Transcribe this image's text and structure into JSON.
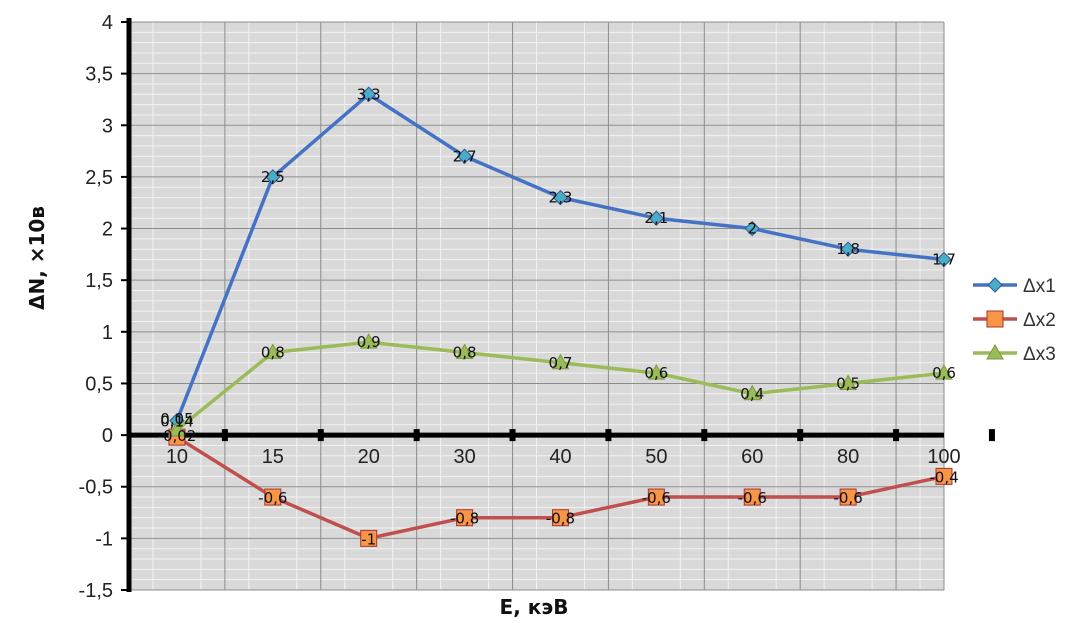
{
  "chart_data": {
    "type": "line",
    "categories": [
      "10",
      "15",
      "20",
      "30",
      "40",
      "50",
      "60",
      "80",
      "100"
    ],
    "series": [
      {
        "name": "Δx1",
        "color": "#4472C4",
        "marker": "diamond",
        "values": [
          0.14,
          2.5,
          3.3,
          2.7,
          2.3,
          2.1,
          2,
          1.8,
          1.7
        ],
        "labels": [
          "0,14",
          "2,5",
          "3,3",
          "2,7",
          "2,3",
          "2,1",
          "2",
          "1,8",
          "1,7"
        ]
      },
      {
        "name": "Δx2",
        "color": "#C0504D",
        "marker": "square",
        "values": [
          -0.02,
          -0.6,
          -1,
          -0.8,
          -0.8,
          -0.6,
          -0.6,
          -0.6,
          -0.4
        ],
        "labels": [
          "-0,02",
          "-0,6",
          "-1",
          "-0,8",
          "-0,8",
          "-0,6",
          "-0,6",
          "-0,6",
          "-0,4"
        ]
      },
      {
        "name": "Δx3",
        "color": "#9BBB59",
        "marker": "triangle",
        "values": [
          0.05,
          0.8,
          0.9,
          0.8,
          0.7,
          0.6,
          0.4,
          0.5,
          0.6
        ],
        "labels": [
          "0,05",
          "0,8",
          "0,9",
          "0,8",
          "0,7",
          "0,6",
          "0,4",
          "0,5",
          "0,6"
        ]
      }
    ],
    "xlabel": "E, кэВ",
    "ylabel": "ΔN, ×10в",
    "ylim": [
      -1.5,
      4
    ],
    "yticks": [
      -1.5,
      -1,
      -0.5,
      0,
      0.5,
      1,
      1.5,
      2,
      2.5,
      3,
      3.5,
      4
    ],
    "ytick_labels": [
      "-1,5",
      "-1",
      "-0,5",
      "0",
      "0,5",
      "1",
      "1,5",
      "2",
      "2,5",
      "3",
      "3,5",
      "4"
    ],
    "grid": true,
    "legend": "right",
    "plot_background": "#D9D9D9"
  }
}
